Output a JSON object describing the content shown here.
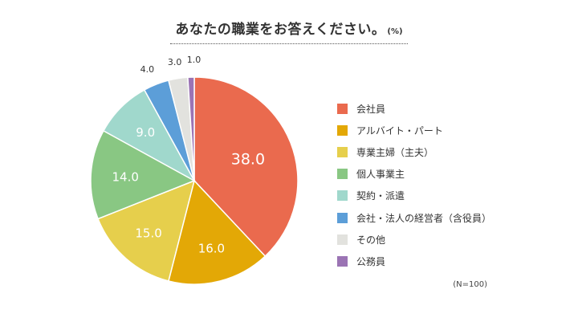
{
  "title": {
    "text": "あなたの職業をお答えください。",
    "unit": "(%)"
  },
  "n_label": "(N=100)",
  "chart_data": {
    "type": "pie",
    "title": "あなたの職業をお答えください。(%)",
    "start": "top",
    "direction": "clockwise",
    "legend_position": "right",
    "slices": [
      {
        "label": "会社員",
        "value": 38.0,
        "display": "38.0",
        "color": "#ea6a4e"
      },
      {
        "label": "アルバイト・パート",
        "value": 16.0,
        "display": "16.0",
        "color": "#e3a806"
      },
      {
        "label": "専業主婦（主夫）",
        "value": 15.0,
        "display": "15.0",
        "color": "#e6cf4c"
      },
      {
        "label": "個人事業主",
        "value": 14.0,
        "display": "14.0",
        "color": "#89c783"
      },
      {
        "label": "契約・派遣",
        "value": 9.0,
        "display": "9.0",
        "color": "#a0d8cc"
      },
      {
        "label": "会社・法人の経営者（含役員）",
        "value": 4.0,
        "display": "4.0",
        "color": "#5c9ed8"
      },
      {
        "label": "その他",
        "value": 3.0,
        "display": "3.0",
        "color": "#e2e2de"
      },
      {
        "label": "公務員",
        "value": 1.0,
        "display": "1.0",
        "color": "#9b74b4"
      }
    ]
  }
}
